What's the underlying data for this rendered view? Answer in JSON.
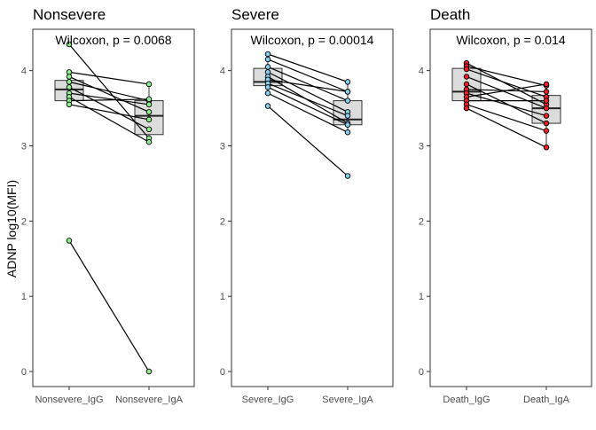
{
  "figure": {
    "ylabel": "ADNP log10(MFI)"
  },
  "chart_data": [
    {
      "type": "paired-boxplot",
      "title": "Nonsevere",
      "annotation": "Wilcoxon, p = 0.0068",
      "categories": [
        "Nonsevere_IgG",
        "Nonsevere_IgA"
      ],
      "point_color": "#90EE90",
      "ylim": [
        -0.2,
        4.55
      ],
      "yticks": [
        0,
        1,
        2,
        3,
        4
      ],
      "box": [
        {
          "q1": 3.6,
          "median": 3.75,
          "q3": 3.87,
          "whisker_low": 3.55,
          "whisker_high": 4.0
        },
        {
          "q1": 3.15,
          "median": 3.4,
          "q3": 3.6,
          "whisker_low": 3.03,
          "whisker_high": 3.82
        }
      ],
      "pairs": [
        [
          4.35,
          3.1
        ],
        [
          3.98,
          3.82
        ],
        [
          3.92,
          3.45
        ],
        [
          3.85,
          3.6
        ],
        [
          3.78,
          3.22
        ],
        [
          3.7,
          3.55
        ],
        [
          3.65,
          3.05
        ],
        [
          3.6,
          3.62
        ],
        [
          3.55,
          3.35
        ],
        [
          1.74,
          0.0
        ]
      ]
    },
    {
      "type": "paired-boxplot",
      "title": "Severe",
      "annotation": "Wilcoxon, p = 0.00014",
      "categories": [
        "Severe_IgG",
        "Severe_IgA"
      ],
      "point_color": "#87CEEB",
      "ylim": [
        -0.2,
        4.55
      ],
      "yticks": [
        0,
        1,
        2,
        3,
        4
      ],
      "box": [
        {
          "q1": 3.8,
          "median": 3.85,
          "q3": 4.03,
          "whisker_low": 3.72,
          "whisker_high": 4.22
        },
        {
          "q1": 3.28,
          "median": 3.35,
          "q3": 3.6,
          "whisker_low": 3.18,
          "whisker_high": 3.85
        }
      ],
      "pairs": [
        [
          4.22,
          3.85
        ],
        [
          4.15,
          3.72
        ],
        [
          4.05,
          3.6
        ],
        [
          3.98,
          3.45
        ],
        [
          3.92,
          3.3
        ],
        [
          3.88,
          3.72
        ],
        [
          3.83,
          3.4
        ],
        [
          3.78,
          3.28
        ],
        [
          3.7,
          3.18
        ],
        [
          3.53,
          2.6
        ]
      ]
    },
    {
      "type": "paired-boxplot",
      "title": "Death",
      "annotation": "Wilcoxon, p = 0.014",
      "categories": [
        "Death_IgG",
        "Death_IgA"
      ],
      "point_color": "#E8202A",
      "ylim": [
        -0.2,
        4.55
      ],
      "yticks": [
        0,
        1,
        2,
        3,
        4
      ],
      "box": [
        {
          "q1": 3.6,
          "median": 3.72,
          "q3": 4.03,
          "whisker_low": 3.5,
          "whisker_high": 4.1
        },
        {
          "q1": 3.3,
          "median": 3.5,
          "q3": 3.67,
          "whisker_low": 2.98,
          "whisker_high": 3.82
        }
      ],
      "pairs": [
        [
          4.1,
          3.55
        ],
        [
          4.06,
          3.8
        ],
        [
          4.02,
          3.65
        ],
        [
          3.92,
          3.5
        ],
        [
          3.82,
          3.3
        ],
        [
          3.75,
          3.72
        ],
        [
          3.7,
          3.4
        ],
        [
          3.65,
          3.82
        ],
        [
          3.6,
          3.6
        ],
        [
          3.55,
          3.2
        ],
        [
          3.5,
          2.98
        ]
      ]
    }
  ]
}
